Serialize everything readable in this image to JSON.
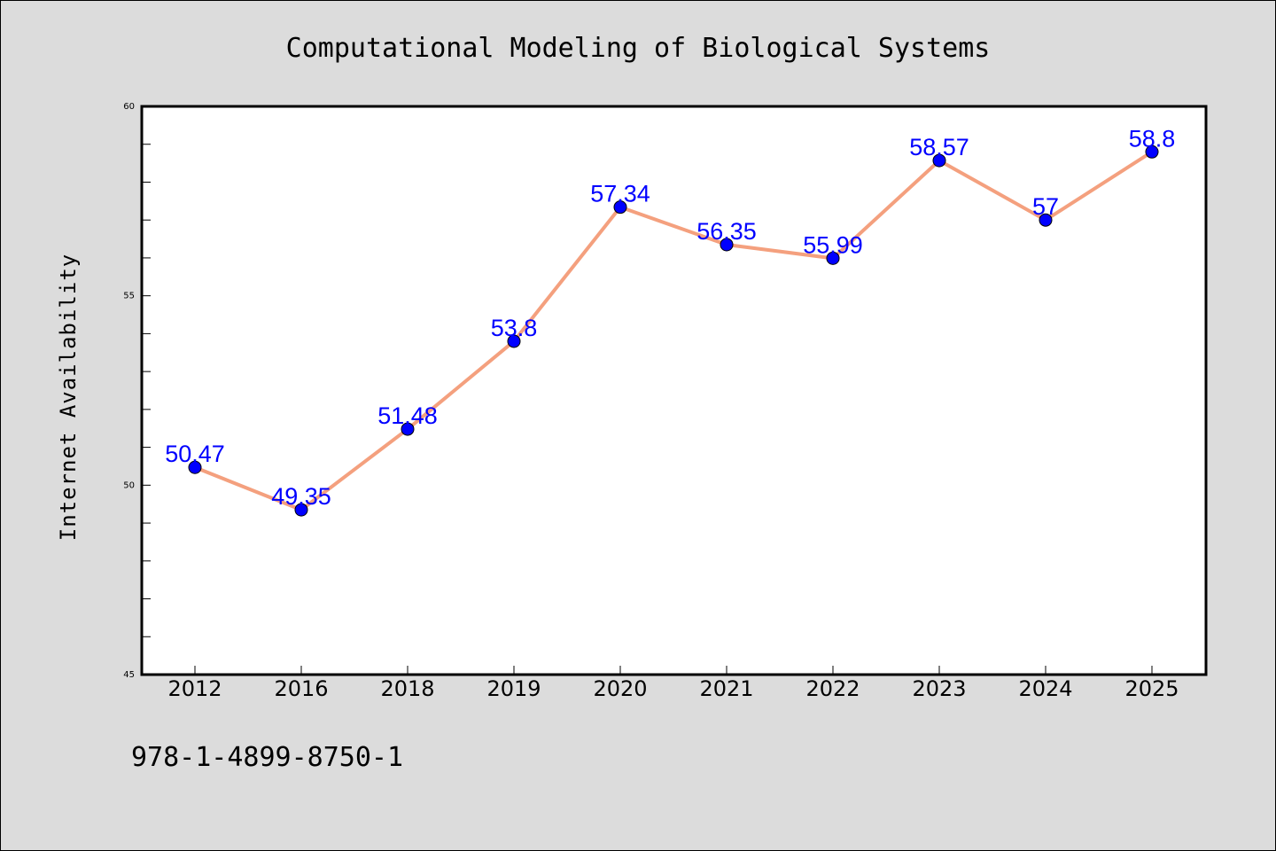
{
  "chart_data": {
    "type": "line",
    "title": "Computational Modeling of Biological Systems",
    "xlabel": "",
    "ylabel": "Internet Availability",
    "categories": [
      "2012",
      "2016",
      "2018",
      "2019",
      "2020",
      "2021",
      "2022",
      "2023",
      "2024",
      "2025"
    ],
    "values": [
      50.47,
      49.35,
      51.48,
      53.8,
      57.34,
      56.35,
      55.99,
      58.57,
      57,
      58.8
    ],
    "data_labels": [
      "50.47",
      "49.35",
      "51.48",
      "53.8",
      "57.34",
      "56.35",
      "55.99",
      "58.57",
      "57",
      "58.8"
    ],
    "ylim": [
      45,
      60
    ],
    "yticks": [
      45,
      50,
      55,
      60
    ],
    "grid": false,
    "colors": {
      "line": "#f4a07e",
      "marker": "#0000ff",
      "label": "#0000ff",
      "background": "#dcdcdc",
      "plot_background": "#ffffff"
    }
  },
  "footer": {
    "isbn": "978-1-4899-8750-1"
  }
}
